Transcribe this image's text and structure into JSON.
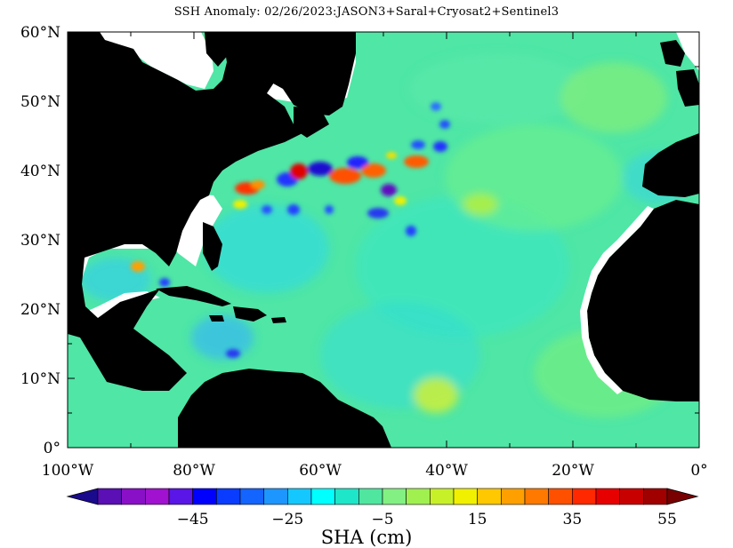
{
  "title": "SSH Anomaly: 02/26/2023:JASON3+Saral+Cryosat2+Sentinel3",
  "map": {
    "lat_labels": [
      "60°N",
      "50°N",
      "40°N",
      "30°N",
      "20°N",
      "10°N",
      "0°"
    ],
    "lon_labels": [
      "100°W",
      "80°W",
      "60°W",
      "40°W",
      "20°W",
      "0°"
    ],
    "ocean_color": "#4fe6a6",
    "land_color": "#000000",
    "nodata_color": "#ffffff"
  },
  "colorbar": {
    "title": "SHA (cm)",
    "tick_labels": [
      "−45",
      "−25",
      "−5",
      "15",
      "35",
      "55"
    ],
    "colors": [
      "#1a0a8c",
      "#5a10b4",
      "#8a10c8",
      "#a012d0",
      "#5a16e6",
      "#0000ff",
      "#0a3cff",
      "#1464ff",
      "#1e96ff",
      "#14c8ff",
      "#00ffff",
      "#1ee6c8",
      "#50e6a0",
      "#82f082",
      "#a0f050",
      "#c8f028",
      "#f0f000",
      "#ffc800",
      "#ffa000",
      "#ff7800",
      "#ff5000",
      "#ff2800",
      "#e60000",
      "#c80000",
      "#a00000",
      "#780000"
    ]
  }
}
